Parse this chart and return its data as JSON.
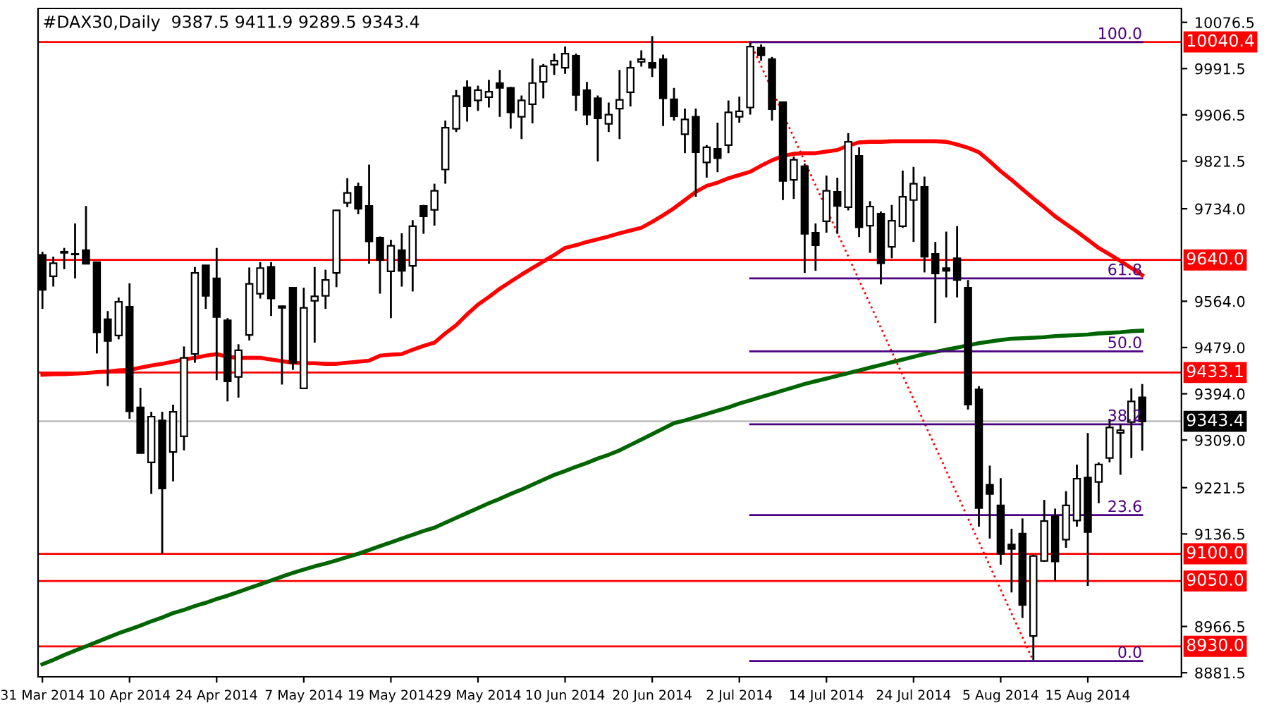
{
  "chart_data": {
    "type": "candlestick",
    "title": "#DAX30,Daily  9387.5 9411.9 9289.5 9343.4",
    "categories": [
      "31 Mar 2014",
      null,
      null,
      null,
      null,
      null,
      null,
      null,
      "10 Apr 2014",
      null,
      null,
      null,
      null,
      null,
      null,
      null,
      "24 Apr 2014",
      null,
      null,
      null,
      null,
      null,
      null,
      null,
      "7 May 2014",
      null,
      null,
      null,
      null,
      null,
      null,
      null,
      "19 May 2014",
      null,
      null,
      null,
      null,
      null,
      null,
      null,
      "29 May 2014",
      null,
      null,
      null,
      null,
      null,
      null,
      null,
      "10 Jun 2014",
      null,
      null,
      null,
      null,
      null,
      null,
      null,
      "20 Jun 2014",
      null,
      null,
      null,
      null,
      null,
      null,
      null,
      "2 Jul 2014",
      null,
      null,
      null,
      null,
      null,
      null,
      null,
      "14 Jul 2014",
      null,
      null,
      null,
      null,
      null,
      null,
      null,
      "24 Jul 2014",
      null,
      null,
      null,
      null,
      null,
      null,
      null,
      "5 Aug 2014",
      null,
      null,
      null,
      null,
      null,
      null,
      null,
      "15 Aug 2014",
      null,
      null,
      null,
      null,
      null
    ],
    "ohlc": [
      [
        9649,
        9655,
        9550,
        9585
      ],
      [
        9610,
        9646,
        9591,
        9634
      ],
      [
        9653,
        9662,
        9623,
        9655
      ],
      [
        9651,
        9707,
        9606,
        9650
      ],
      [
        9658,
        9739,
        9632,
        9633
      ],
      [
        9636,
        9636,
        9468,
        9507
      ],
      [
        9531,
        9546,
        9408,
        9491
      ],
      [
        9501,
        9571,
        9494,
        9563
      ],
      [
        9554,
        9597,
        9348,
        9362
      ],
      [
        9369,
        9405,
        9285,
        9285
      ],
      [
        9268,
        9361,
        9210,
        9352
      ],
      [
        9345,
        9361,
        9100,
        9220
      ],
      [
        9287,
        9374,
        9233,
        9361
      ],
      [
        9316,
        9481,
        9290,
        9460
      ],
      [
        9467,
        9627,
        9451,
        9616
      ],
      [
        9630,
        9630,
        9550,
        9574
      ],
      [
        9606,
        9662,
        9419,
        9535
      ],
      [
        9529,
        9533,
        9380,
        9417
      ],
      [
        9425,
        9485,
        9387,
        9474
      ],
      [
        9502,
        9626,
        9492,
        9596
      ],
      [
        9578,
        9636,
        9569,
        9625
      ],
      [
        9627,
        9636,
        9537,
        9569
      ],
      [
        9555,
        9556,
        9411,
        9552
      ],
      [
        9589,
        9589,
        9438,
        9451
      ],
      [
        9404,
        9589,
        9404,
        9552
      ],
      [
        9565,
        9627,
        9488,
        9573
      ],
      [
        9574,
        9622,
        9550,
        9603
      ],
      [
        9616,
        9732,
        9590,
        9731
      ],
      [
        9745,
        9790,
        9737,
        9763
      ],
      [
        9774,
        9782,
        9724,
        9734
      ],
      [
        9739,
        9815,
        9633,
        9674
      ],
      [
        9681,
        9683,
        9578,
        9640
      ],
      [
        9619,
        9677,
        9533,
        9666
      ],
      [
        9658,
        9689,
        9591,
        9620
      ],
      [
        9629,
        9713,
        9582,
        9702
      ],
      [
        9739,
        9741,
        9688,
        9720
      ],
      [
        9732,
        9780,
        9703,
        9767
      ],
      [
        9806,
        9896,
        9780,
        9883
      ],
      [
        9881,
        9952,
        9875,
        9941
      ],
      [
        9957,
        9970,
        9894,
        9922
      ],
      [
        9933,
        9960,
        9914,
        9952
      ],
      [
        9939,
        9971,
        9920,
        9949
      ],
      [
        9965,
        9989,
        9903,
        9956
      ],
      [
        9956,
        9958,
        9881,
        9911
      ],
      [
        9903,
        9942,
        9862,
        9933
      ],
      [
        9926,
        10010,
        9891,
        9965
      ],
      [
        9967,
        10000,
        9937,
        9996
      ],
      [
        9999,
        10019,
        9980,
        10006
      ],
      [
        9993,
        10032,
        9982,
        10019
      ],
      [
        10015,
        10019,
        9914,
        9943
      ],
      [
        9952,
        9967,
        9888,
        9907
      ],
      [
        9937,
        9942,
        9821,
        9900
      ],
      [
        9890,
        9929,
        9875,
        9907
      ],
      [
        9918,
        9989,
        9862,
        9934
      ],
      [
        9948,
        10006,
        9922,
        9993
      ],
      [
        10004,
        10025,
        9995,
        10009
      ],
      [
        10002,
        10051,
        9976,
        9993
      ],
      [
        10009,
        10017,
        9886,
        9937
      ],
      [
        9935,
        9956,
        9896,
        9904
      ],
      [
        9871,
        9918,
        9836,
        9898
      ],
      [
        9903,
        9918,
        9756,
        9838
      ],
      [
        9819,
        9851,
        9791,
        9847
      ],
      [
        9844,
        9892,
        9801,
        9827
      ],
      [
        9851,
        9933,
        9836,
        9911
      ],
      [
        9903,
        9940,
        9892,
        9913
      ],
      [
        9920,
        10039,
        9907,
        10032
      ],
      [
        10030,
        10036,
        10006,
        10016
      ],
      [
        10009,
        10013,
        9896,
        9917
      ],
      [
        9930,
        9930,
        9750,
        9785
      ],
      [
        9787,
        9830,
        9752,
        9824
      ],
      [
        9812,
        9817,
        9616,
        9688
      ],
      [
        9690,
        9707,
        9620,
        9667
      ],
      [
        9711,
        9795,
        9690,
        9767
      ],
      [
        9765,
        9791,
        9688,
        9739
      ],
      [
        9737,
        9873,
        9731,
        9857
      ],
      [
        9831,
        9847,
        9682,
        9700
      ],
      [
        9703,
        9748,
        9653,
        9738
      ],
      [
        9725,
        9729,
        9595,
        9634
      ],
      [
        9664,
        9741,
        9643,
        9712
      ],
      [
        9702,
        9804,
        9699,
        9756
      ],
      [
        9750,
        9811,
        9673,
        9780
      ],
      [
        9774,
        9793,
        9617,
        9646
      ],
      [
        9651,
        9673,
        9524,
        9615
      ],
      [
        9625,
        9692,
        9571,
        9620
      ],
      [
        9643,
        9702,
        9571,
        9603
      ],
      [
        9589,
        9603,
        9365,
        9374
      ],
      [
        9402,
        9408,
        9150,
        9184
      ],
      [
        9227,
        9262,
        9128,
        9210
      ],
      [
        9189,
        9239,
        9080,
        9100
      ],
      [
        9117,
        9146,
        9029,
        9109
      ],
      [
        9137,
        9165,
        8982,
        9006
      ],
      [
        8949,
        9098,
        8905,
        9096
      ],
      [
        9087,
        9199,
        9085,
        9160
      ],
      [
        9169,
        9183,
        9051,
        9086
      ],
      [
        9126,
        9215,
        9111,
        9189
      ],
      [
        9161,
        9264,
        9150,
        9238
      ],
      [
        9240,
        9322,
        9041,
        9140
      ],
      [
        9232,
        9268,
        9193,
        9264
      ],
      [
        9276,
        9348,
        9268,
        9332
      ],
      [
        9322,
        9337,
        9245,
        9327
      ],
      [
        9342,
        9404,
        9276,
        9380
      ],
      [
        9387.5,
        9411.9,
        9289.5,
        9343.4
      ]
    ],
    "series": [
      {
        "type": "line",
        "color": "#ff0000",
        "line_style": "solid",
        "values": [
          9429,
          9430,
          9430,
          9431,
          9432,
          9434,
          9435,
          9437,
          9438,
          9442,
          9446,
          9449,
          9453,
          9457,
          9460,
          9464,
          9467,
          9462,
          9460,
          9460,
          9460,
          9457,
          9454,
          9451,
          9450,
          9450,
          9449,
          9449,
          9451,
          9453,
          9455,
          9464,
          9466,
          9467,
          9475,
          9482,
          9488,
          9505,
          9520,
          9540,
          9558,
          9572,
          9587,
          9600,
          9613,
          9625,
          9637,
          9649,
          9662,
          9667,
          9673,
          9678,
          9683,
          9689,
          9694,
          9699,
          9710,
          9722,
          9735,
          9750,
          9765,
          9776,
          9782,
          9790,
          9796,
          9802,
          9813,
          9823,
          9831,
          9835,
          9836,
          9836,
          9839,
          9842,
          9850,
          9856,
          9857,
          9857,
          9858,
          9858,
          9858,
          9858,
          9858,
          9857,
          9852,
          9846,
          9838,
          9821,
          9803,
          9787,
          9770,
          9753,
          9737,
          9720,
          9706,
          9692,
          9677,
          9662,
          9650,
          9638,
          9625,
          9612
        ]
      },
      {
        "type": "line",
        "color": "#006400",
        "line_style": "solid",
        "values": [
          8897,
          8905,
          8914,
          8922,
          8930,
          8938,
          8946,
          8954,
          8961,
          8968,
          8976,
          8983,
          8991,
          8997,
          9004,
          9010,
          9017,
          9023,
          9030,
          9037,
          9044,
          9051,
          9058,
          9065,
          9071,
          9077,
          9082,
          9088,
          9094,
          9100,
          9107,
          9114,
          9121,
          9128,
          9135,
          9142,
          9148,
          9157,
          9166,
          9175,
          9184,
          9193,
          9201,
          9210,
          9218,
          9227,
          9236,
          9245,
          9252,
          9260,
          9267,
          9275,
          9282,
          9290,
          9300,
          9310,
          9320,
          9330,
          9340,
          9345,
          9351,
          9357,
          9363,
          9369,
          9376,
          9382,
          9388,
          9394,
          9400,
          9406,
          9412,
          9417,
          9422,
          9427,
          9432,
          9437,
          9442,
          9447,
          9452,
          9457,
          9462,
          9467,
          9471,
          9475,
          9479,
          9483,
          9487,
          9490,
          9493,
          9495,
          9496,
          9497,
          9498,
          9500,
          9501,
          9502,
          9503,
          9505,
          9506,
          9507,
          9509,
          9510
        ]
      },
      {
        "type": "line",
        "color": "#ff0000",
        "line_style": "dotted",
        "values": [
          null,
          null,
          null,
          null,
          null,
          null,
          null,
          null,
          null,
          null,
          null,
          null,
          null,
          null,
          null,
          null,
          null,
          null,
          null,
          null,
          null,
          null,
          null,
          null,
          null,
          null,
          null,
          null,
          null,
          null,
          null,
          null,
          null,
          null,
          null,
          null,
          null,
          null,
          null,
          null,
          null,
          null,
          null,
          null,
          null,
          null,
          null,
          null,
          null,
          null,
          null,
          null,
          null,
          null,
          null,
          null,
          null,
          null,
          null,
          null,
          null,
          null,
          null,
          null,
          null,
          10040,
          null,
          null,
          null,
          null,
          null,
          null,
          null,
          null,
          null,
          null,
          null,
          null,
          null,
          null,
          null,
          null,
          null,
          null,
          null,
          null,
          null,
          null,
          null,
          null,
          null,
          8903,
          null,
          null,
          null,
          null,
          null,
          null,
          null,
          null,
          null,
          null
        ]
      },
      {
        "type": "line",
        "name": "100.0",
        "color": "#4b0082",
        "line_style": "solid",
        "values": [
          null,
          null,
          null,
          null,
          null,
          null,
          null,
          null,
          null,
          null,
          null,
          null,
          null,
          null,
          null,
          null,
          null,
          null,
          null,
          null,
          null,
          null,
          null,
          null,
          null,
          null,
          null,
          null,
          null,
          null,
          null,
          null,
          null,
          null,
          null,
          null,
          null,
          null,
          null,
          null,
          null,
          null,
          null,
          null,
          null,
          null,
          null,
          null,
          null,
          null,
          null,
          null,
          null,
          null,
          null,
          null,
          null,
          null,
          null,
          null,
          null,
          null,
          null,
          null,
          null,
          10040,
          10040,
          10040,
          10040,
          10040,
          10040,
          10040,
          10040,
          10040,
          10040,
          10040,
          10040,
          10040,
          10040,
          10040,
          10040,
          10040,
          10040,
          10040,
          10040,
          10040,
          10040,
          10040,
          10040,
          10040,
          10040,
          10040,
          10040,
          10040,
          10040,
          10040,
          10040,
          10040,
          10040,
          10040,
          10040,
          10040
        ]
      },
      {
        "type": "line",
        "name": "61.8",
        "color": "#4b0082",
        "line_style": "solid",
        "values": [
          null,
          null,
          null,
          null,
          null,
          null,
          null,
          null,
          null,
          null,
          null,
          null,
          null,
          null,
          null,
          null,
          null,
          null,
          null,
          null,
          null,
          null,
          null,
          null,
          null,
          null,
          null,
          null,
          null,
          null,
          null,
          null,
          null,
          null,
          null,
          null,
          null,
          null,
          null,
          null,
          null,
          null,
          null,
          null,
          null,
          null,
          null,
          null,
          null,
          null,
          null,
          null,
          null,
          null,
          null,
          null,
          null,
          null,
          null,
          null,
          null,
          null,
          null,
          null,
          null,
          9606,
          9606,
          9606,
          9606,
          9606,
          9606,
          9606,
          9606,
          9606,
          9606,
          9606,
          9606,
          9606,
          9606,
          9606,
          9606,
          9606,
          9606,
          9606,
          9606,
          9606,
          9606,
          9606,
          9606,
          9606,
          9606,
          9606,
          9606,
          9606,
          9606,
          9606,
          9606,
          9606,
          9606,
          9606,
          9606,
          9606
        ]
      },
      {
        "type": "line",
        "name": "50.0",
        "color": "#4b0082",
        "line_style": "solid",
        "values": [
          null,
          null,
          null,
          null,
          null,
          null,
          null,
          null,
          null,
          null,
          null,
          null,
          null,
          null,
          null,
          null,
          null,
          null,
          null,
          null,
          null,
          null,
          null,
          null,
          null,
          null,
          null,
          null,
          null,
          null,
          null,
          null,
          null,
          null,
          null,
          null,
          null,
          null,
          null,
          null,
          null,
          null,
          null,
          null,
          null,
          null,
          null,
          null,
          null,
          null,
          null,
          null,
          null,
          null,
          null,
          null,
          null,
          null,
          null,
          null,
          null,
          null,
          null,
          null,
          null,
          9472,
          9472,
          9472,
          9472,
          9472,
          9472,
          9472,
          9472,
          9472,
          9472,
          9472,
          9472,
          9472,
          9472,
          9472,
          9472,
          9472,
          9472,
          9472,
          9472,
          9472,
          9472,
          9472,
          9472,
          9472,
          9472,
          9472,
          9472,
          9472,
          9472,
          9472,
          9472,
          9472,
          9472,
          9472,
          9472,
          9472
        ]
      },
      {
        "type": "line",
        "name": "38.2",
        "color": "#4b0082",
        "line_style": "solid",
        "values": [
          null,
          null,
          null,
          null,
          null,
          null,
          null,
          null,
          null,
          null,
          null,
          null,
          null,
          null,
          null,
          null,
          null,
          null,
          null,
          null,
          null,
          null,
          null,
          null,
          null,
          null,
          null,
          null,
          null,
          null,
          null,
          null,
          null,
          null,
          null,
          null,
          null,
          null,
          null,
          null,
          null,
          null,
          null,
          null,
          null,
          null,
          null,
          null,
          null,
          null,
          null,
          null,
          null,
          null,
          null,
          null,
          null,
          null,
          null,
          null,
          null,
          null,
          null,
          null,
          null,
          9338,
          9338,
          9338,
          9338,
          9338,
          9338,
          9338,
          9338,
          9338,
          9338,
          9338,
          9338,
          9338,
          9338,
          9338,
          9338,
          9338,
          9338,
          9338,
          9338,
          9338,
          9338,
          9338,
          9338,
          9338,
          9338,
          9338,
          9338,
          9338,
          9338,
          9338,
          9338,
          9338,
          9338,
          9338,
          9338,
          9338
        ]
      },
      {
        "type": "line",
        "name": "23.6",
        "color": "#4b0082",
        "line_style": "solid",
        "values": [
          null,
          null,
          null,
          null,
          null,
          null,
          null,
          null,
          null,
          null,
          null,
          null,
          null,
          null,
          null,
          null,
          null,
          null,
          null,
          null,
          null,
          null,
          null,
          null,
          null,
          null,
          null,
          null,
          null,
          null,
          null,
          null,
          null,
          null,
          null,
          null,
          null,
          null,
          null,
          null,
          null,
          null,
          null,
          null,
          null,
          null,
          null,
          null,
          null,
          null,
          null,
          null,
          null,
          null,
          null,
          null,
          null,
          null,
          null,
          null,
          null,
          null,
          null,
          null,
          null,
          9171,
          9171,
          9171,
          9171,
          9171,
          9171,
          9171,
          9171,
          9171,
          9171,
          9171,
          9171,
          9171,
          9171,
          9171,
          9171,
          9171,
          9171,
          9171,
          9171,
          9171,
          9171,
          9171,
          9171,
          9171,
          9171,
          9171,
          9171,
          9171,
          9171,
          9171,
          9171,
          9171,
          9171,
          9171,
          9171,
          9171
        ]
      },
      {
        "type": "line",
        "name": "0.0",
        "color": "#4b0082",
        "line_style": "solid",
        "values": [
          null,
          null,
          null,
          null,
          null,
          null,
          null,
          null,
          null,
          null,
          null,
          null,
          null,
          null,
          null,
          null,
          null,
          null,
          null,
          null,
          null,
          null,
          null,
          null,
          null,
          null,
          null,
          null,
          null,
          null,
          null,
          null,
          null,
          null,
          null,
          null,
          null,
          null,
          null,
          null,
          null,
          null,
          null,
          null,
          null,
          null,
          null,
          null,
          null,
          null,
          null,
          null,
          null,
          null,
          null,
          null,
          null,
          null,
          null,
          null,
          null,
          null,
          null,
          null,
          null,
          8903,
          8903,
          8903,
          8903,
          8903,
          8903,
          8903,
          8903,
          8903,
          8903,
          8903,
          8903,
          8903,
          8903,
          8903,
          8903,
          8903,
          8903,
          8903,
          8903,
          8903,
          8903,
          8903,
          8903,
          8903,
          8903,
          8903,
          8903,
          8903,
          8903,
          8903,
          8903,
          8903,
          8903,
          8903,
          8903,
          8903
        ]
      }
    ],
    "ref_lines": [
      {
        "axis": "y",
        "value": 10040.4,
        "label": "10040.4",
        "color": "#ff0000"
      },
      {
        "axis": "y",
        "value": 9640.0,
        "label": "9640.0",
        "color": "#ff0000"
      },
      {
        "axis": "y",
        "value": 9433.1,
        "label": "9433.1",
        "color": "#ff0000"
      },
      {
        "axis": "y",
        "value": 9343.4,
        "label": "9343.4",
        "color": "#c0c0c0"
      },
      {
        "axis": "y",
        "value": 9100.0,
        "label": "9100.0",
        "color": "#ff0000"
      },
      {
        "axis": "y",
        "value": 9050.0,
        "label": "9050.0",
        "color": "#ff0000"
      },
      {
        "axis": "y",
        "value": 8930.0,
        "label": "8930.0",
        "color": "#ff0000"
      }
    ],
    "ylim": [
      8874,
      10102
    ],
    "yticks": [
      10076.5,
      9991.5,
      9906.5,
      9821.5,
      {
        "value": 9734,
        "label": "9734.0"
      },
      {
        "value": 9564,
        "label": "9564.0"
      },
      {
        "value": 9479,
        "label": "9479.0"
      },
      {
        "value": 9394,
        "label": "9394.0"
      },
      {
        "value": 9309,
        "label": "9309.0"
      },
      9221.5,
      9136.5,
      8966.5,
      8881.5
    ]
  }
}
